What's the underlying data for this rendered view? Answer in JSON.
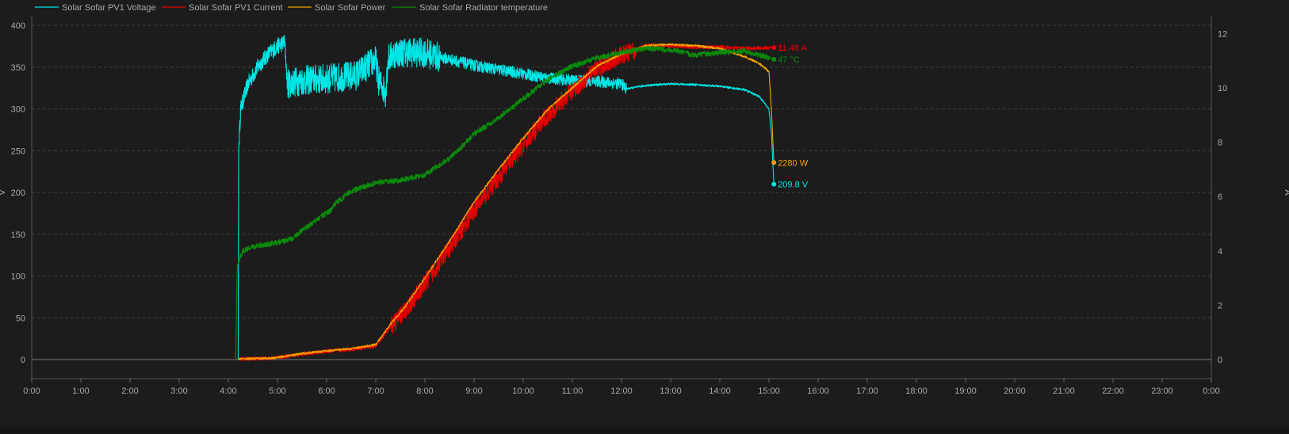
{
  "chart_data": {
    "type": "line",
    "xlim_hours": [
      0,
      24
    ],
    "x_ticks": [
      "0:00",
      "1:00",
      "2:00",
      "3:00",
      "4:00",
      "5:00",
      "6:00",
      "7:00",
      "8:00",
      "9:00",
      "10:00",
      "11:00",
      "12:00",
      "13:00",
      "14:00",
      "15:00",
      "16:00",
      "17:00",
      "18:00",
      "19:00",
      "20:00",
      "21:00",
      "22:00",
      "23:00",
      "0:00"
    ],
    "y_left": {
      "label": "V",
      "lim": [
        0,
        400
      ],
      "ticks": [
        0,
        50,
        100,
        150,
        200,
        250,
        300,
        350,
        400
      ]
    },
    "y_right": {
      "label": "A",
      "lim": [
        0,
        12.3
      ],
      "ticks": [
        0,
        2,
        4,
        6,
        8,
        10,
        12
      ]
    },
    "grid": true,
    "legend_position": "top-left",
    "series": [
      {
        "name": "Solar Sofar PV1 Voltage",
        "color": "#00e5e5",
        "axis": "left",
        "noise": 14,
        "points": [
          [
            4.2,
            0
          ],
          [
            4.21,
            250
          ],
          [
            4.25,
            300
          ],
          [
            4.4,
            330
          ],
          [
            4.6,
            350
          ],
          [
            4.8,
            365
          ],
          [
            5.0,
            375
          ],
          [
            5.15,
            380
          ],
          [
            5.2,
            330
          ],
          [
            5.4,
            333
          ],
          [
            5.7,
            335
          ],
          [
            6.0,
            336
          ],
          [
            6.3,
            338
          ],
          [
            6.6,
            340
          ],
          [
            6.9,
            355
          ],
          [
            7.0,
            358
          ],
          [
            7.05,
            335
          ],
          [
            7.2,
            320
          ],
          [
            7.25,
            360
          ],
          [
            7.4,
            367
          ],
          [
            7.7,
            368
          ],
          [
            8.0,
            367
          ],
          [
            8.3,
            362
          ],
          [
            8.6,
            358
          ],
          [
            9.0,
            352
          ],
          [
            9.5,
            347
          ],
          [
            10.0,
            342
          ],
          [
            10.5,
            337
          ],
          [
            11.0,
            334
          ],
          [
            11.5,
            333
          ],
          [
            12.0,
            330
          ],
          [
            12.1,
            324
          ],
          [
            12.5,
            328
          ],
          [
            13.0,
            330
          ],
          [
            13.5,
            329
          ],
          [
            14.0,
            327
          ],
          [
            14.5,
            323
          ],
          [
            14.8,
            315
          ],
          [
            15.0,
            300
          ],
          [
            15.05,
            270
          ],
          [
            15.1,
            209.8
          ]
        ],
        "end_label": "209.8 V"
      },
      {
        "name": "Solar Sofar PV1 Current",
        "color": "#e30000",
        "axis": "right",
        "noise": 0.35,
        "points": [
          [
            4.2,
            0.02
          ],
          [
            4.9,
            0.05
          ],
          [
            5.5,
            0.2
          ],
          [
            6.0,
            0.3
          ],
          [
            6.5,
            0.38
          ],
          [
            7.0,
            0.5
          ],
          [
            7.3,
            1.2
          ],
          [
            7.6,
            1.8
          ],
          [
            8.0,
            2.8
          ],
          [
            8.5,
            4.1
          ],
          [
            9.0,
            5.5
          ],
          [
            9.5,
            6.7
          ],
          [
            10.0,
            7.9
          ],
          [
            10.5,
            9.0
          ],
          [
            11.0,
            9.9
          ],
          [
            11.5,
            10.7
          ],
          [
            12.0,
            11.2
          ],
          [
            12.5,
            11.55
          ],
          [
            13.0,
            11.55
          ],
          [
            13.5,
            11.5
          ],
          [
            14.0,
            11.5
          ],
          [
            14.5,
            11.45
          ],
          [
            15.1,
            11.48
          ]
        ],
        "end_label": "11.48 A"
      },
      {
        "name": "Solar Sofar Power",
        "color": "#f5a000",
        "axis": "right",
        "noise": 0.04,
        "points": [
          [
            4.2,
            0.02
          ],
          [
            4.9,
            0.05
          ],
          [
            5.5,
            0.22
          ],
          [
            6.0,
            0.32
          ],
          [
            6.5,
            0.4
          ],
          [
            7.0,
            0.55
          ],
          [
            7.3,
            1.3
          ],
          [
            7.6,
            1.95
          ],
          [
            8.0,
            3.0
          ],
          [
            8.5,
            4.35
          ],
          [
            9.0,
            5.8
          ],
          [
            9.5,
            7.0
          ],
          [
            10.0,
            8.15
          ],
          [
            10.5,
            9.2
          ],
          [
            11.0,
            10.0
          ],
          [
            11.5,
            10.8
          ],
          [
            12.0,
            11.25
          ],
          [
            12.5,
            11.55
          ],
          [
            13.0,
            11.6
          ],
          [
            13.5,
            11.55
          ],
          [
            14.0,
            11.45
          ],
          [
            14.5,
            11.15
          ],
          [
            14.8,
            10.9
          ],
          [
            15.0,
            10.6
          ],
          [
            15.05,
            9.2
          ],
          [
            15.1,
            7.25
          ]
        ],
        "end_label": "2280 W"
      },
      {
        "name": "Solar Sofar Radiator temperature",
        "color": "#0a8c0a",
        "axis": "right",
        "noise": 0.1,
        "points": [
          [
            4.15,
            0
          ],
          [
            4.18,
            3.5
          ],
          [
            4.3,
            4.0
          ],
          [
            4.6,
            4.2
          ],
          [
            5.0,
            4.3
          ],
          [
            5.3,
            4.45
          ],
          [
            5.5,
            4.75
          ],
          [
            6.0,
            5.4
          ],
          [
            6.1,
            5.5
          ],
          [
            6.15,
            5.7
          ],
          [
            6.5,
            6.2
          ],
          [
            7.0,
            6.5
          ],
          [
            7.5,
            6.6
          ],
          [
            8.0,
            6.8
          ],
          [
            8.5,
            7.4
          ],
          [
            9.0,
            8.3
          ],
          [
            9.5,
            8.9
          ],
          [
            10.0,
            9.6
          ],
          [
            10.5,
            10.3
          ],
          [
            11.0,
            10.8
          ],
          [
            11.5,
            11.1
          ],
          [
            12.0,
            11.3
          ],
          [
            12.5,
            11.45
          ],
          [
            13.0,
            11.4
          ],
          [
            13.5,
            11.2
          ],
          [
            14.0,
            11.3
          ],
          [
            14.5,
            11.35
          ],
          [
            15.1,
            11.05
          ]
        ],
        "end_label": "47 °C"
      }
    ]
  }
}
